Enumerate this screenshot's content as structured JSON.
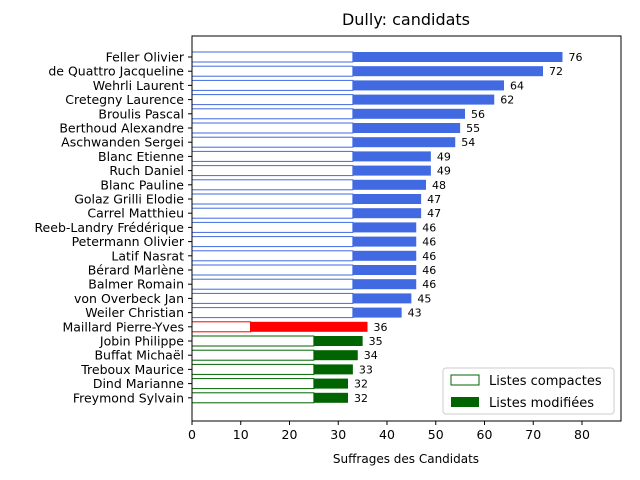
{
  "chart_data": {
    "type": "bar",
    "orientation": "horizontal",
    "stacked": true,
    "title": "Dully: candidats",
    "xlabel": "Suffrages des Candidats",
    "ylabel": "",
    "xlim": [
      0,
      88
    ],
    "xticks": [
      0,
      10,
      20,
      30,
      40,
      50,
      60,
      70,
      80
    ],
    "legend": {
      "placement": "lower-right",
      "entries": [
        {
          "label": "Listes compactes",
          "style": "outline",
          "color": "#006400"
        },
        {
          "label": "Listes modifiées",
          "style": "filled",
          "color": "#006400"
        }
      ]
    },
    "candidates": [
      {
        "name": "Feller Olivier",
        "compact": 33,
        "total": 76,
        "group": "blue"
      },
      {
        "name": "de Quattro Jacqueline",
        "compact": 33,
        "total": 72,
        "group": "blue"
      },
      {
        "name": "Wehrli Laurent",
        "compact": 33,
        "total": 64,
        "group": "blue"
      },
      {
        "name": "Cretegny Laurence",
        "compact": 33,
        "total": 62,
        "group": "blue"
      },
      {
        "name": "Broulis Pascal",
        "compact": 33,
        "total": 56,
        "group": "blue"
      },
      {
        "name": "Berthoud Alexandre",
        "compact": 33,
        "total": 55,
        "group": "blue"
      },
      {
        "name": "Aschwanden Sergei",
        "compact": 33,
        "total": 54,
        "group": "blue"
      },
      {
        "name": "Blanc Etienne",
        "compact": 33,
        "total": 49,
        "group": "blue"
      },
      {
        "name": "Ruch Daniel",
        "compact": 33,
        "total": 49,
        "group": "blue"
      },
      {
        "name": "Blanc Pauline",
        "compact": 33,
        "total": 48,
        "group": "blue"
      },
      {
        "name": "Golaz Grilli Elodie",
        "compact": 33,
        "total": 47,
        "group": "blue"
      },
      {
        "name": "Carrel Matthieu",
        "compact": 33,
        "total": 47,
        "group": "blue"
      },
      {
        "name": "Reeb-Landry Frédérique",
        "compact": 33,
        "total": 46,
        "group": "blue"
      },
      {
        "name": "Petermann Olivier",
        "compact": 33,
        "total": 46,
        "group": "blue"
      },
      {
        "name": "Latif Nasrat",
        "compact": 33,
        "total": 46,
        "group": "blue"
      },
      {
        "name": "Bérard Marlène",
        "compact": 33,
        "total": 46,
        "group": "blue"
      },
      {
        "name": "Balmer Romain",
        "compact": 33,
        "total": 46,
        "group": "blue"
      },
      {
        "name": "von Overbeck Jan",
        "compact": 33,
        "total": 45,
        "group": "blue"
      },
      {
        "name": "Weiler Christian",
        "compact": 33,
        "total": 43,
        "group": "blue"
      },
      {
        "name": "Maillard Pierre-Yves",
        "compact": 12,
        "total": 36,
        "group": "red"
      },
      {
        "name": "Jobin Philippe",
        "compact": 25,
        "total": 35,
        "group": "green"
      },
      {
        "name": "Buffat Michaël",
        "compact": 25,
        "total": 34,
        "group": "green"
      },
      {
        "name": "Treboux Maurice",
        "compact": 25,
        "total": 33,
        "group": "green"
      },
      {
        "name": "Dind Marianne",
        "compact": 25,
        "total": 32,
        "group": "green"
      },
      {
        "name": "Freymond Sylvain",
        "compact": 25,
        "total": 32,
        "group": "green"
      }
    ],
    "colors": {
      "blue": "#4169e1",
      "red": "#ff0000",
      "green": "#006400"
    }
  }
}
